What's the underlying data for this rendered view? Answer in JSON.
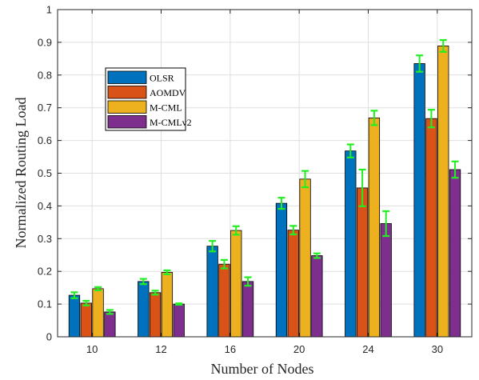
{
  "chart_data": {
    "type": "bar",
    "xlabel": "Number of Nodes",
    "ylabel": "Normalized Routing Load",
    "ylim": [
      0,
      1
    ],
    "yticks": [
      "0",
      "0.1",
      "0.2",
      "0.3",
      "0.4",
      "0.5",
      "0.6",
      "0.7",
      "0.8",
      "0.9",
      "1"
    ],
    "categories": [
      "10",
      "12",
      "16",
      "20",
      "24",
      "30"
    ],
    "grid": true,
    "legend_position": "upper-left",
    "error_bar_color": "#22ee22",
    "series": [
      {
        "name": "OLSR",
        "color": "#0072BD",
        "values": [
          0.127,
          0.169,
          0.277,
          0.408,
          0.568,
          0.835
        ],
        "errors": [
          0.009,
          0.008,
          0.016,
          0.017,
          0.02,
          0.025
        ]
      },
      {
        "name": "AOMDV",
        "color": "#D95319",
        "values": [
          0.103,
          0.135,
          0.222,
          0.326,
          0.455,
          0.667
        ],
        "errors": [
          0.007,
          0.006,
          0.013,
          0.013,
          0.056,
          0.027
        ]
      },
      {
        "name": "M-CML",
        "color": "#EDB120",
        "values": [
          0.147,
          0.197,
          0.325,
          0.482,
          0.669,
          0.889
        ],
        "errors": [
          0.005,
          0.006,
          0.013,
          0.025,
          0.022,
          0.018
        ]
      },
      {
        "name": "M-CMLv2",
        "color": "#7E2F8E",
        "values": [
          0.076,
          0.1,
          0.169,
          0.248,
          0.346,
          0.511
        ],
        "errors": [
          0.006,
          0.002,
          0.013,
          0.007,
          0.038,
          0.025
        ]
      }
    ]
  }
}
